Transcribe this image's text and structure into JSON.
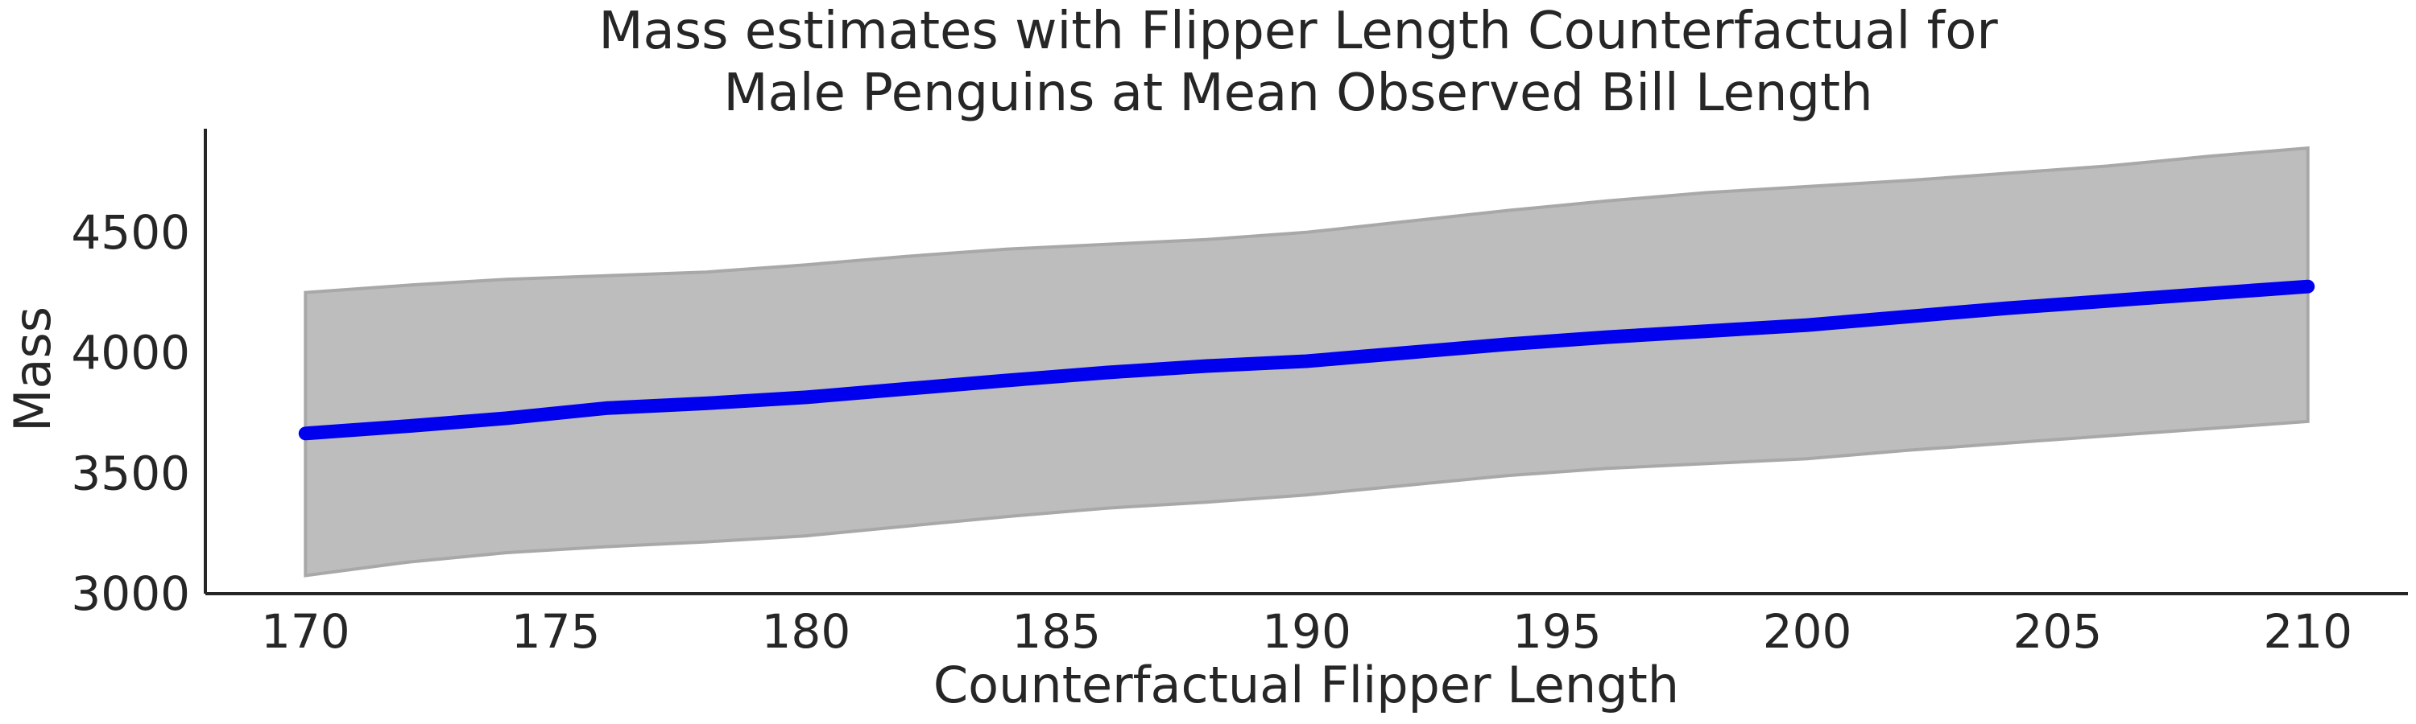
{
  "chart_data": {
    "type": "area",
    "title_lines": [
      "Mass estimates with Flipper Length Counterfactual for",
      "Male Penguins at Mean Observed Bill Length"
    ],
    "xlabel": "Counterfactual Flipper Length",
    "ylabel": "Mass",
    "xlim": [
      168,
      212
    ],
    "ylim": [
      3000,
      4930
    ],
    "x_ticks": [
      170,
      175,
      180,
      185,
      190,
      195,
      200,
      205,
      210
    ],
    "y_ticks": [
      3000,
      3500,
      4000,
      4500
    ],
    "grid": false,
    "legend": "none",
    "x": [
      170,
      172,
      174,
      176,
      178,
      180,
      182,
      184,
      186,
      188,
      190,
      192,
      194,
      196,
      198,
      200,
      202,
      204,
      206,
      208,
      210
    ],
    "series": [
      {
        "role": "mean",
        "color": "#0000ee",
        "values": [
          3665,
          3695,
          3728,
          3770,
          3790,
          3815,
          3850,
          3885,
          3918,
          3945,
          3965,
          4000,
          4035,
          4065,
          4090,
          4115,
          4150,
          4185,
          4215,
          4245,
          4275
        ]
      },
      {
        "role": "interval-lower",
        "color": "#bdbdbd",
        "values": [
          3075,
          3130,
          3170,
          3195,
          3215,
          3240,
          3280,
          3320,
          3355,
          3380,
          3410,
          3450,
          3490,
          3520,
          3540,
          3560,
          3595,
          3625,
          3655,
          3685,
          3715
        ]
      },
      {
        "role": "interval-upper",
        "color": "#bdbdbd",
        "values": [
          4250,
          4280,
          4305,
          4320,
          4335,
          4365,
          4400,
          4430,
          4450,
          4470,
          4500,
          4545,
          4590,
          4630,
          4665,
          4690,
          4715,
          4745,
          4775,
          4815,
          4850
        ]
      }
    ]
  }
}
